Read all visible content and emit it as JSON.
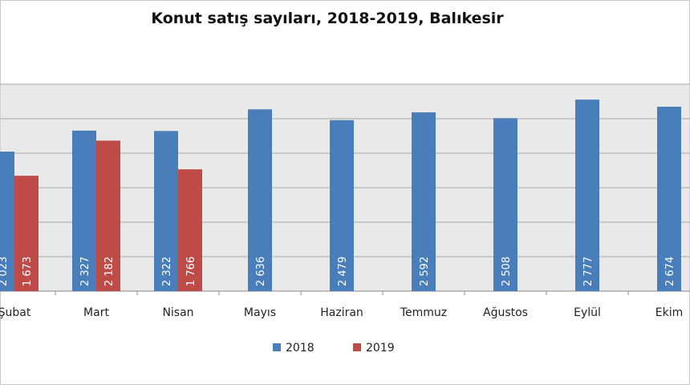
{
  "chart_data": {
    "type": "bar",
    "title": "Konut satış sayıları, 2018-2019, Balıkesir",
    "categories": [
      "Şubat",
      "Mart",
      "Nisan",
      "Mayıs",
      "Haziran",
      "Temmuz",
      "Ağustos",
      "Eylül",
      "Ekim"
    ],
    "series": [
      {
        "name": "2018",
        "color": "#4a7ebb",
        "values": [
          2023,
          2327,
          2322,
          2636,
          2479,
          2592,
          2508,
          2777,
          2674
        ]
      },
      {
        "name": "2019",
        "color": "#be4b48",
        "values": [
          1673,
          2182,
          1766,
          null,
          null,
          null,
          null,
          null,
          null
        ]
      }
    ],
    "ylim": [
      0,
      3000
    ],
    "grid_step": 500,
    "grid": true,
    "plot_background": "#e9e9e9",
    "data_labels": "inside-bar-vertical",
    "legend": "bottom-center"
  }
}
